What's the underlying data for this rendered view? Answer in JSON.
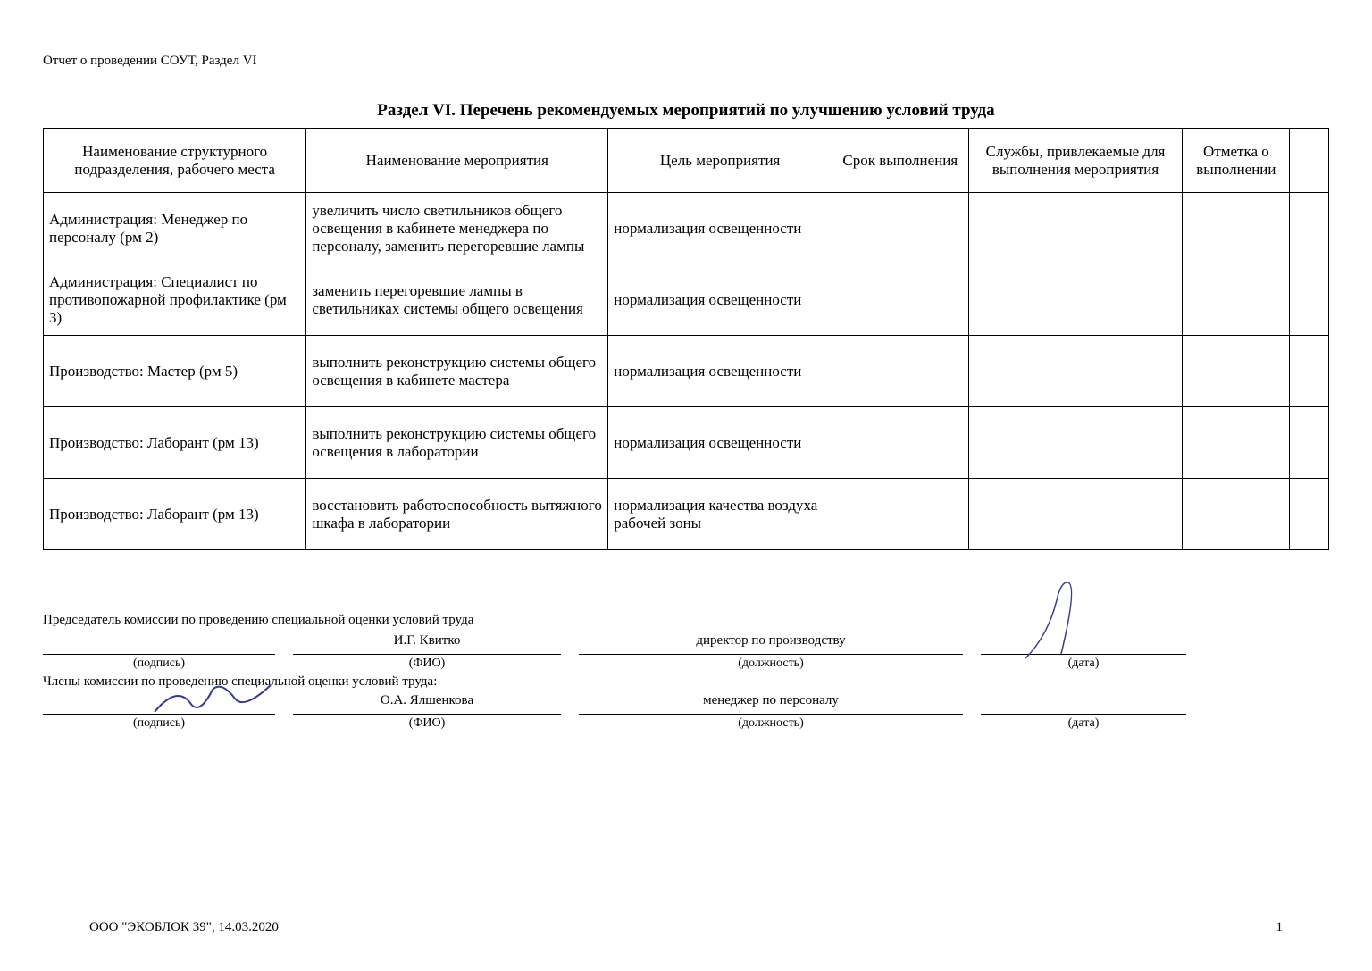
{
  "header": "Отчет о проведении СОУТ, Раздел VI",
  "section_title": "Раздел VI.  Перечень рекомендуемых мероприятий по улучшению условий труда",
  "table": {
    "columns": [
      "Наименование структурного подразделения, рабочего места",
      "Наименование мероприятия",
      "Цель мероприятия",
      "Срок выполнения",
      "Службы, привлекаемые для выполнения мероприятия",
      "Отметка о выполнении",
      ""
    ],
    "rows": [
      [
        "Администрация: Менеджер по персоналу (рм 2)",
        "увеличить число светильников общего освещения в кабинете менеджера по персоналу, заменить перегоревшие лампы",
        "нормализация освещенности",
        "",
        "",
        "",
        ""
      ],
      [
        "Администрация: Специалист по противопожарной профилактике (рм 3)",
        "заменить перегоревшие лампы в светильниках системы общего освещения",
        "нормализация освещенности",
        "",
        "",
        "",
        ""
      ],
      [
        "Производство: Мастер (рм 5)",
        "выполнить реконструкцию системы общего освещения в кабинете мастера",
        "нормализация освещенности",
        "",
        "",
        "",
        ""
      ],
      [
        "Производство: Лаборант (рм 13)",
        "выполнить реконструкцию системы общего освещения в лаборатории",
        "нормализация освещенности",
        "",
        "",
        "",
        ""
      ],
      [
        "Производство: Лаборант (рм 13)",
        "восстановить работоспособность вытяжного шкафа в лаборатории",
        "нормализация качества воздуха рабочей зоны",
        "",
        "",
        "",
        ""
      ]
    ]
  },
  "signatures": {
    "chair_header": "Председатель комиссии по проведению специальной оценки условий труда",
    "chair": {
      "fio": "И.Г. Квитко",
      "position": "директор по производству"
    },
    "members_header": "Члены комиссии по проведению специальной оценки условий труда:",
    "member1": {
      "fio": "О.А. Ялшенкова",
      "position": "менеджер по персоналу"
    },
    "captions": {
      "sign": "(подпись)",
      "fio": "(ФИО)",
      "position": "(должность)",
      "date": "(дата)"
    }
  },
  "footer": {
    "org": "ООО \"ЭКОБЛОК 39\", 14.03.2020",
    "page": "1"
  },
  "colors": {
    "text": "#000000",
    "border": "#000000",
    "bg": "#ffffff",
    "ink": "#3a3a8a"
  }
}
